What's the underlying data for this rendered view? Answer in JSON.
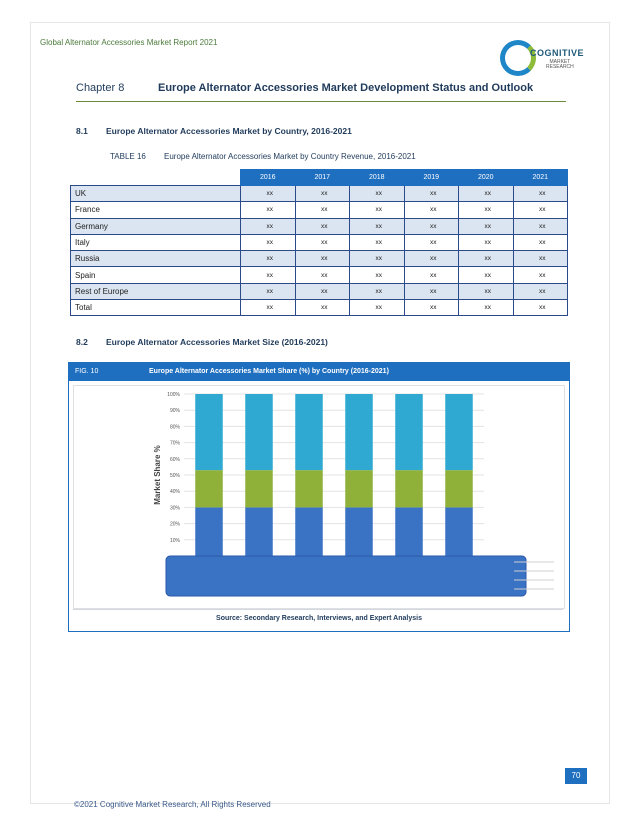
{
  "header": {
    "report_title": "Global Alternator Accessories Market Report 2021"
  },
  "logo": {
    "brand": "COGNITIVE",
    "sub1": "MARKET",
    "sub2": "RESEARCH"
  },
  "chapter": {
    "number": "Chapter 8",
    "title": "Europe Alternator Accessories Market Development Status and Outlook"
  },
  "section1": {
    "number": "8.1",
    "title": "Europe Alternator Accessories Market by Country, 2016-2021"
  },
  "table": {
    "caption_number": "TABLE 16",
    "caption_title": "Europe Alternator Accessories Market by Country Revenue, 2016-2021",
    "columns": [
      "2016",
      "2017",
      "2018",
      "2019",
      "2020",
      "2021"
    ],
    "rows": [
      {
        "label": "UK",
        "values": [
          "xx",
          "xx",
          "xx",
          "xx",
          "xx",
          "xx"
        ]
      },
      {
        "label": "France",
        "values": [
          "xx",
          "xx",
          "xx",
          "xx",
          "xx",
          "xx"
        ]
      },
      {
        "label": "Germany",
        "values": [
          "xx",
          "xx",
          "xx",
          "xx",
          "xx",
          "xx"
        ]
      },
      {
        "label": "Italy",
        "values": [
          "xx",
          "xx",
          "xx",
          "xx",
          "xx",
          "xx"
        ]
      },
      {
        "label": "Russia",
        "values": [
          "xx",
          "xx",
          "xx",
          "xx",
          "xx",
          "xx"
        ]
      },
      {
        "label": "Spain",
        "values": [
          "xx",
          "xx",
          "xx",
          "xx",
          "xx",
          "xx"
        ]
      },
      {
        "label": "Rest of Europe",
        "values": [
          "xx",
          "xx",
          "xx",
          "xx",
          "xx",
          "xx"
        ]
      },
      {
        "label": "Total",
        "values": [
          "xx",
          "xx",
          "xx",
          "xx",
          "xx",
          "xx"
        ]
      }
    ]
  },
  "section2": {
    "number": "8.2",
    "title": "Europe Alternator Accessories Market Size (2016-2021)"
  },
  "figure": {
    "label": "FIG. 10",
    "title": "Europe Alternator Accessories Market Share (%) by Country (2016-2021)",
    "source": "Source: Secondary Research, Interviews, and Expert Analysis"
  },
  "chart_data": {
    "type": "bar",
    "stacked": true,
    "ylabel": "Market Share %",
    "ylim": [
      0,
      100
    ],
    "yticks": [
      "10%",
      "20%",
      "30%",
      "40%",
      "50%",
      "60%",
      "70%",
      "80%",
      "90%",
      "100%"
    ],
    "bar_count": 6,
    "series": [
      {
        "values": [
          30,
          30,
          30,
          30,
          30,
          30
        ],
        "color": "#3a72c4"
      },
      {
        "values": [
          23,
          23,
          23,
          23,
          23,
          23
        ],
        "color": "#8fb13a"
      },
      {
        "values": [
          47,
          47,
          47,
          47,
          47,
          47
        ],
        "color": "#2fa9d2"
      }
    ],
    "overlay_color": "#3a72c4",
    "grid": true
  },
  "page": {
    "number": "70"
  },
  "footer": {
    "copyright": "©2021 Cognitive Market Research, All Rights Reserved"
  }
}
